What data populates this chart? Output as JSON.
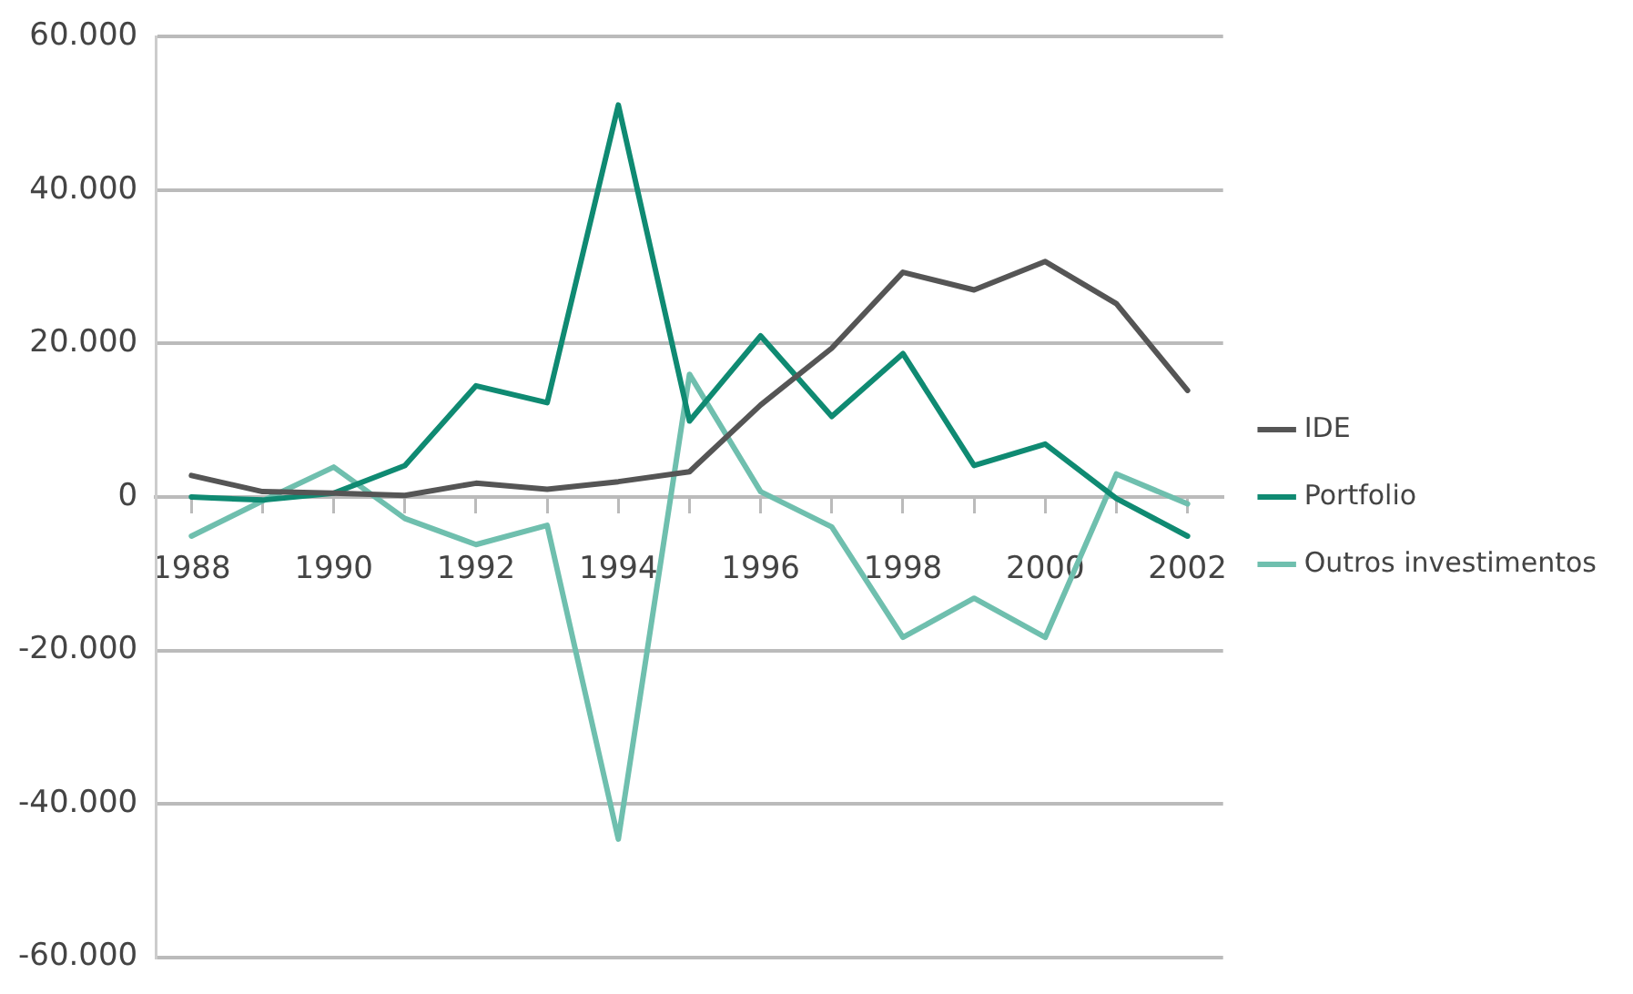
{
  "chart_data": {
    "type": "line",
    "x": [
      1988,
      1989,
      1990,
      1991,
      1992,
      1993,
      1994,
      1995,
      1996,
      1997,
      1998,
      1999,
      2000,
      2001,
      2002
    ],
    "series": [
      {
        "name": "IDE",
        "color": "#555555",
        "values": [
          2800,
          700,
          500,
          200,
          1800,
          1000,
          2000,
          3300,
          12000,
          19400,
          29300,
          27000,
          30700,
          25200,
          13900
        ]
      },
      {
        "name": "Portfolio",
        "color": "#0f8a72",
        "values": [
          0,
          -400,
          500,
          4100,
          14500,
          12300,
          51100,
          9900,
          21000,
          10500,
          18700,
          4100,
          6900,
          -200,
          -5100
        ]
      },
      {
        "name": "Outros investimentos",
        "color": "#6fbfae",
        "values": [
          -5100,
          -500,
          3900,
          -2800,
          -6200,
          -3700,
          -44600,
          16000,
          700,
          -3900,
          -18300,
          -13200,
          -18300,
          3000,
          -900
        ]
      }
    ],
    "xlim": [
      1987.5,
      2002.5
    ],
    "xticks": [
      1988,
      {
        "value": 1989,
        "label": null
      },
      1990,
      {
        "value": 1991,
        "label": null
      },
      1992,
      {
        "value": 1993,
        "label": null
      },
      1994,
      {
        "value": 1995,
        "label": null
      },
      1996,
      {
        "value": 1997,
        "label": null
      },
      1998,
      {
        "value": 1999,
        "label": null
      },
      2000,
      {
        "value": 2001,
        "label": null
      },
      2002
    ],
    "ylim": [
      -60000,
      60000
    ],
    "yticks": [
      {
        "value": -60000,
        "label": "-60.000"
      },
      {
        "value": -40000,
        "label": "-40.000"
      },
      {
        "value": -20000,
        "label": "-20.000"
      },
      0,
      {
        "value": 20000,
        "label": "20.000"
      },
      {
        "value": 40000,
        "label": "40.000"
      },
      {
        "value": 60000,
        "label": "60.000"
      }
    ],
    "grid": "y",
    "legend": "right",
    "marker": "none",
    "line_style": "solid"
  }
}
